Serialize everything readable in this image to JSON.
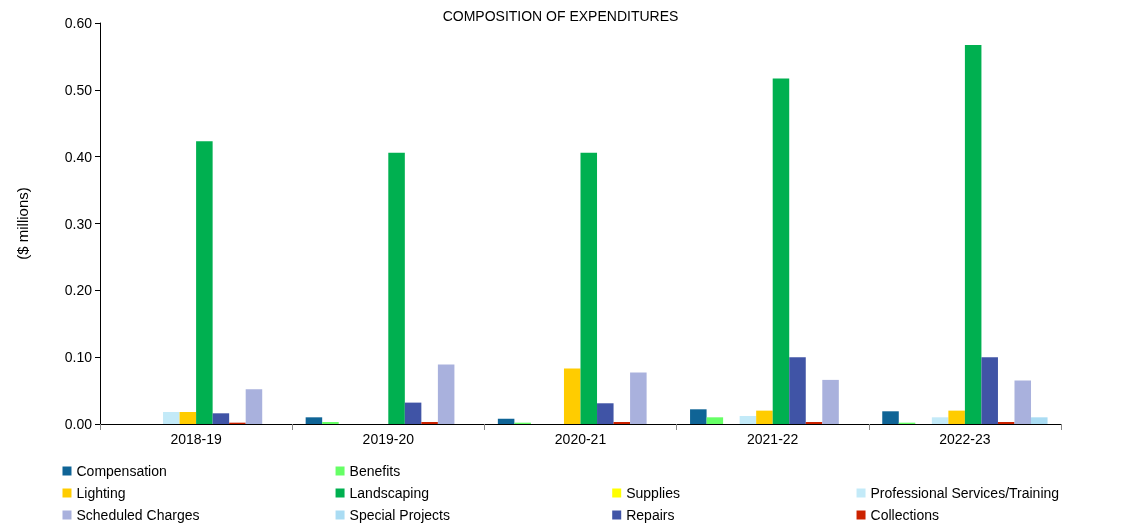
{
  "chart_data": {
    "type": "bar",
    "title": "COMPOSITION OF EXPENDITURES",
    "ylabel": "($ millions)",
    "categories": [
      "2018-19",
      "2019-20",
      "2020-21",
      "2021-22",
      "2022-23"
    ],
    "series": [
      {
        "name": "Compensation",
        "color": "#0f6496",
        "values": [
          0,
          0.01,
          0.008,
          0.022,
          0.019
        ]
      },
      {
        "name": "Benefits",
        "color": "#66ff66",
        "values": [
          0,
          0.003,
          0.002,
          0.01,
          0.002
        ]
      },
      {
        "name": "Supplies",
        "color": "#ffff00",
        "values": [
          0,
          0,
          0,
          0,
          0
        ]
      },
      {
        "name": "Professional Services/Training",
        "color": "#c3eaf8",
        "values": [
          0.018,
          0,
          0,
          0.012,
          0.01
        ]
      },
      {
        "name": "Lighting",
        "color": "#ffcc00",
        "values": [
          0.018,
          0,
          0.083,
          0.02,
          0.02
        ]
      },
      {
        "name": "Landscaping",
        "color": "#00b050",
        "values": [
          0.423,
          0.406,
          0.406,
          0.517,
          0.567
        ]
      },
      {
        "name": "Repairs",
        "color": "#4054a6",
        "values": [
          0.016,
          0.032,
          0.031,
          0.1,
          0.1
        ]
      },
      {
        "name": "Collections",
        "color": "#cc2200",
        "values": [
          0.002,
          0.003,
          0.003,
          0.003,
          0.003
        ]
      },
      {
        "name": "Scheduled Charges",
        "color": "#a9b1dd",
        "values": [
          0.052,
          0.089,
          0.077,
          0.066,
          0.065
        ]
      },
      {
        "name": "Special Projects",
        "color": "#aadcf3",
        "values": [
          0,
          0,
          0,
          0,
          0.01
        ]
      }
    ],
    "ylim": [
      0,
      0.6
    ],
    "yticks": [
      {
        "value": 0,
        "label": "0.00"
      },
      {
        "value": 0.1,
        "label": "0.10"
      },
      {
        "value": 0.2,
        "label": "0.20"
      },
      {
        "value": 0.3,
        "label": "0.30"
      },
      {
        "value": 0.4,
        "label": "0.40"
      },
      {
        "value": 0.5,
        "label": "0.50"
      },
      {
        "value": 0.6,
        "label": "0.60"
      }
    ],
    "grid": false,
    "legend": "bottom"
  }
}
